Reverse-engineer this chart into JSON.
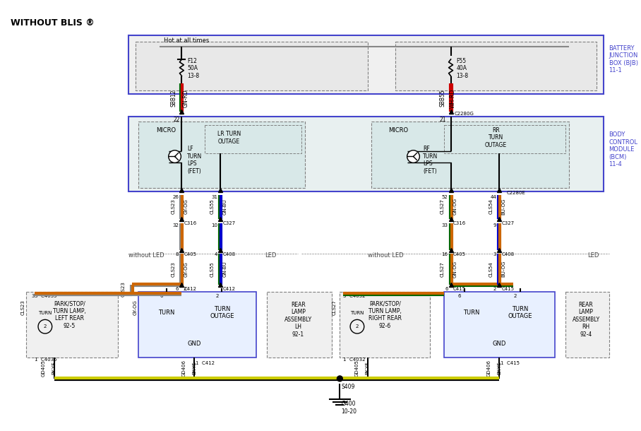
{
  "title": "WITHOUT BLIS ®",
  "bg_color": "#ffffff",
  "wire_colors": {
    "GN_RD": [
      "#006400",
      "#cc0000"
    ],
    "WH_RD": [
      "#ffffff",
      "#cc0000"
    ],
    "GY_OG": [
      "#888888",
      "#cc6600"
    ],
    "GN_BU": [
      "#006400",
      "#0000cc"
    ],
    "GN_OG": [
      "#006400",
      "#cc6600"
    ],
    "BU_OG": [
      "#0000cc",
      "#cc6600"
    ],
    "BK_YE": [
      "#000000",
      "#cccc00"
    ],
    "black": [
      "#000000"
    ]
  },
  "labels": {
    "hot_at_all_times": "Hot at all times",
    "bjb": "BATTERY\nJUNCTION\nBOX (BJB)\n11-1",
    "bcm": "BODY\nCONTROL\nMODULE\n(BCM)\n11-4",
    "f12": "F12\n50A\n13-8",
    "f55": "F55\n40A\n13-8",
    "sbb12": "SBB12",
    "sbb55": "SBB55",
    "c2280g": "C2280G",
    "c2280e": "C2280E",
    "micro_lr": "MICRO",
    "lr_turn_outage": "LR TURN\nOUTAGE",
    "lf_turn_lps": "LF\nTURN\nLPS\n(FET)",
    "micro_rr": "MICRO",
    "rr_turn_outage": "RR\nTURN\nOUTAGE",
    "rf_turn_lps": "RF\nTURN\nLPS\n(FET)",
    "without_led_l": "without LED",
    "led_l": "LED",
    "without_led_r": "without LED",
    "led_r": "LED",
    "park_stop_turn_lr": "PARK/STOP/\nTURN LAMP,\nLEFT REAR\n92-5",
    "park_stop_turn_rr": "PARK/STOP/\nTURN LAMP,\nRIGHT REAR\n92-6",
    "rear_lamp_lh": "REAR\nLAMP\nASSEMBLY\nLH\n92-1",
    "rear_lamp_rh": "REAR\nLAMP\nASSEMBLY\nRH\n92-4",
    "gnd": "GND",
    "s409": "S409",
    "g400": "G400\n10-20"
  }
}
